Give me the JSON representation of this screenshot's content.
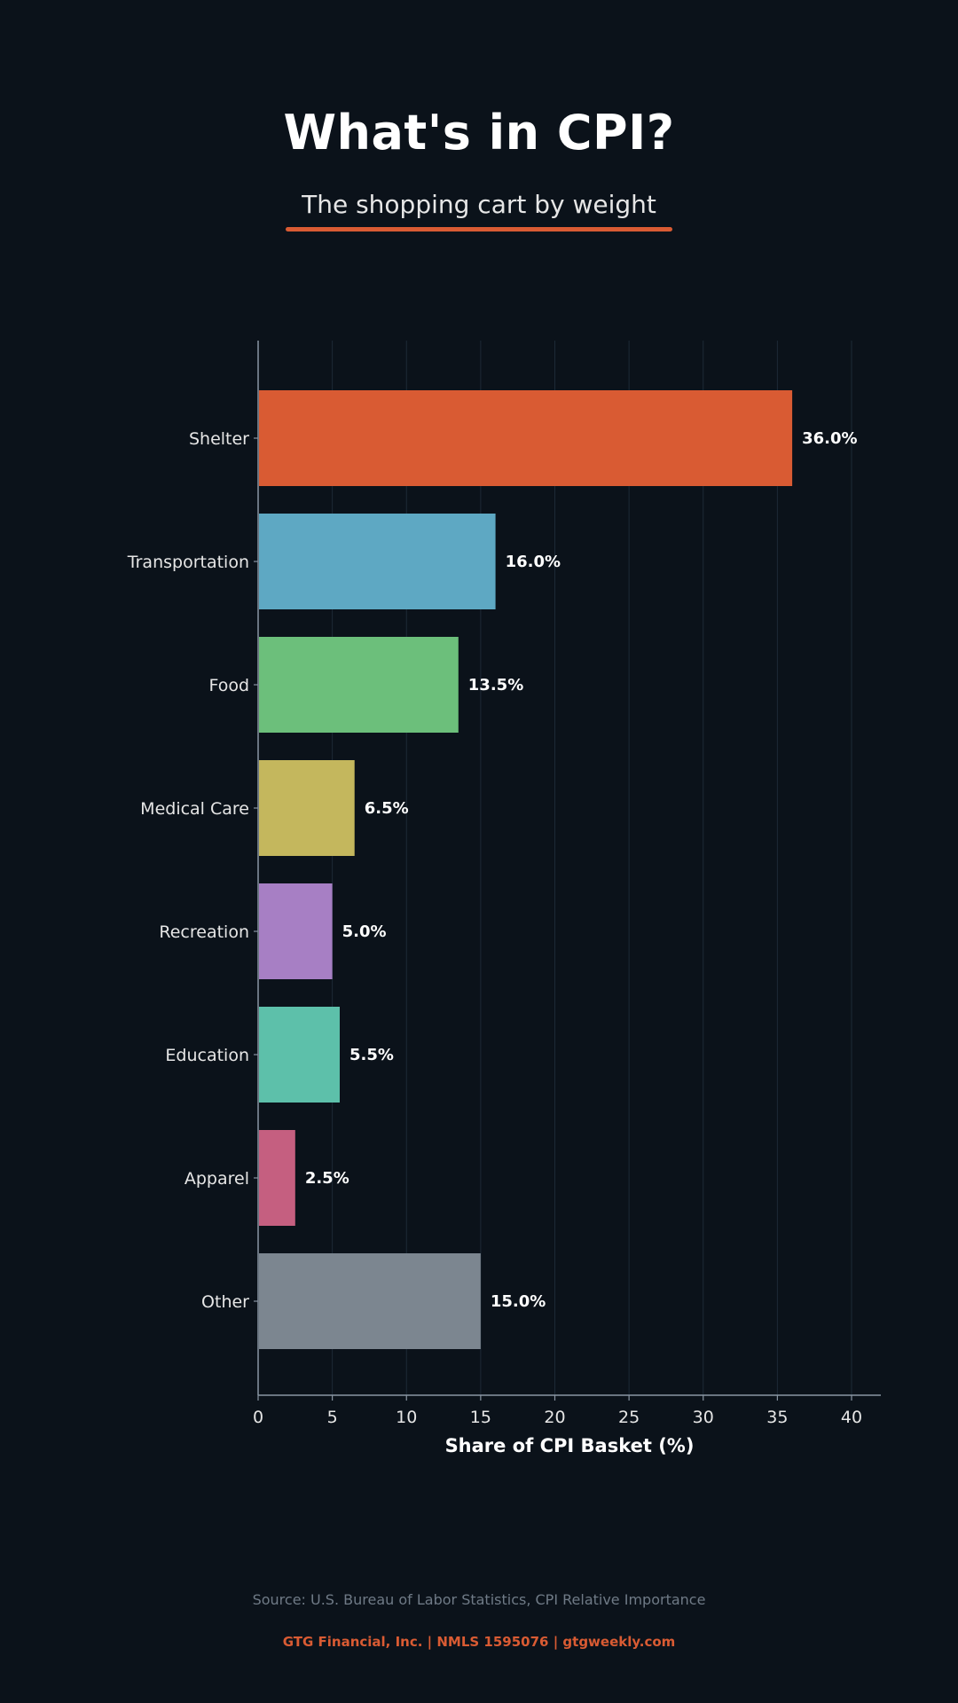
{
  "header": {
    "title": "What's in CPI?",
    "subtitle": "The shopping cart by weight"
  },
  "colors": {
    "background": "#0b121a",
    "accent": "#d95b33",
    "grid": "#1c2a36",
    "axis": "#8a96a3"
  },
  "chart_data": {
    "type": "bar",
    "orientation": "horizontal",
    "categories": [
      "Shelter",
      "Transportation",
      "Food",
      "Medical Care",
      "Recreation",
      "Education",
      "Apparel",
      "Other"
    ],
    "values": [
      36.0,
      16.0,
      13.5,
      6.5,
      5.0,
      5.5,
      2.5,
      15.0
    ],
    "value_labels": [
      "36.0%",
      "16.0%",
      "13.5%",
      "6.5%",
      "5.0%",
      "5.5%",
      "2.5%",
      "15.0%"
    ],
    "bar_colors": [
      "#d95b33",
      "#5ea8c3",
      "#6cbf7b",
      "#c4b75d",
      "#a77fc4",
      "#5dc0aa",
      "#c55f80",
      "#7c8690"
    ],
    "xlabel": "Share of CPI Basket (%)",
    "ylabel": "",
    "xlim": [
      0,
      42
    ],
    "xticks": [
      0,
      5,
      10,
      15,
      20,
      25,
      30,
      35,
      40
    ],
    "grid": "vertical"
  },
  "source": "Source: U.S. Bureau of Labor Statistics, CPI Relative Importance",
  "footer": "GTG Financial, Inc. | NMLS 1595076 | gtgweekly.com"
}
